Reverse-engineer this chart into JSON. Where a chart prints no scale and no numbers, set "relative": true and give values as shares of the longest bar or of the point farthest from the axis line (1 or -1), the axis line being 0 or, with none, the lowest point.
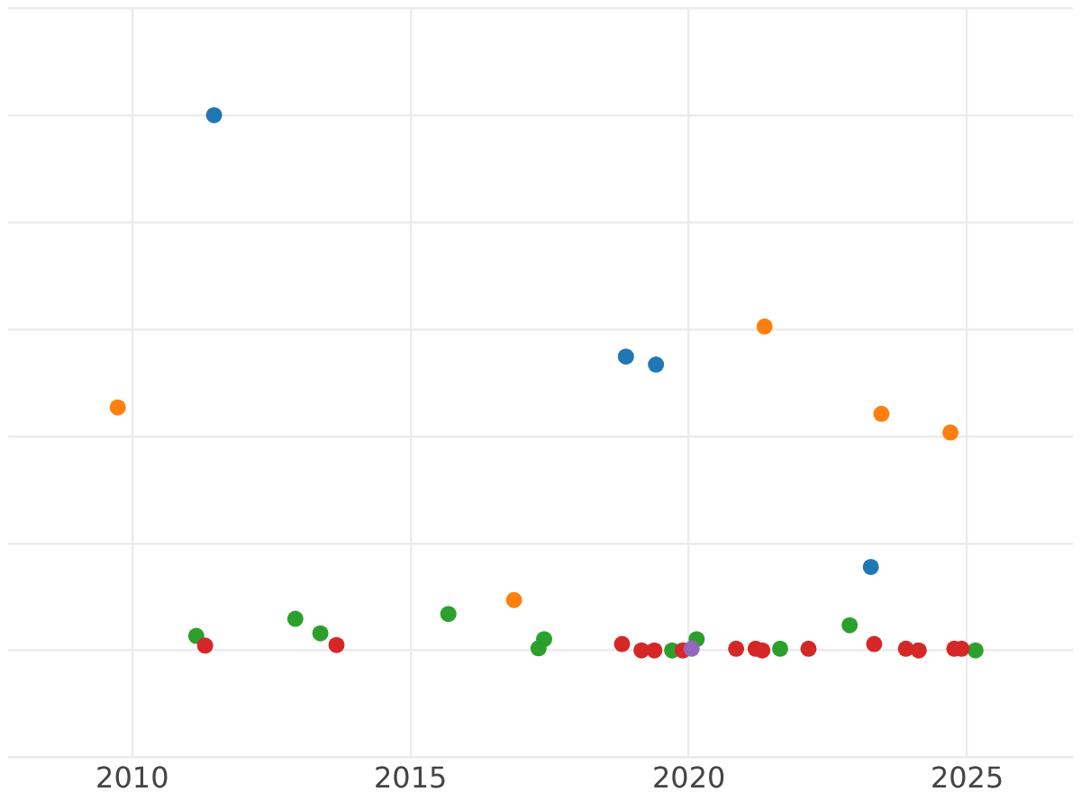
{
  "chart_data": {
    "type": "scatter",
    "relative": true,
    "marker": "circle",
    "grid": true,
    "legend": false,
    "tick_labels": "x",
    "xlim": [
      2007.77,
      2026.9
    ],
    "xticks": [
      2010,
      2015,
      2020,
      2025
    ],
    "series": [
      {
        "color": "#1f77b4",
        "x": [
          2011.47,
          2018.87,
          2019.41,
          2023.27
        ],
        "values": [
          1,
          0.549,
          0.534,
          0.156
        ]
      },
      {
        "color": "#ff7f0e",
        "x": [
          2009.74,
          2016.86,
          2021.36,
          2023.46,
          2024.7
        ],
        "values": [
          0.454,
          0.094,
          0.605,
          0.442,
          0.407
        ]
      },
      {
        "color": "#2ca02c",
        "x": [
          2011.15,
          2012.93,
          2013.38,
          2015.68,
          2017.3,
          2017.4,
          2019.7,
          2020.14,
          2021.64,
          2022.89,
          2025.15
        ],
        "values": [
          0.027,
          0.059,
          0.032,
          0.068,
          0.004,
          0.021,
          0,
          0.021,
          0.003,
          0.047,
          0
        ]
      },
      {
        "color": "#d62728",
        "x": [
          2011.31,
          2013.67,
          2018.8,
          2019.15,
          2019.38,
          2019.89,
          2020.85,
          2021.2,
          2021.32,
          2022.15,
          2023.33,
          2023.9,
          2024.13,
          2024.77,
          2024.9
        ],
        "values": [
          0.009,
          0.01,
          0.012,
          0,
          0,
          0,
          0.003,
          0.003,
          0,
          0.003,
          0.012,
          0.003,
          0,
          0.003,
          0.003
        ]
      },
      {
        "color": "#9467bd",
        "x": [
          2020.05
        ],
        "values": [
          0.003
        ]
      }
    ]
  }
}
